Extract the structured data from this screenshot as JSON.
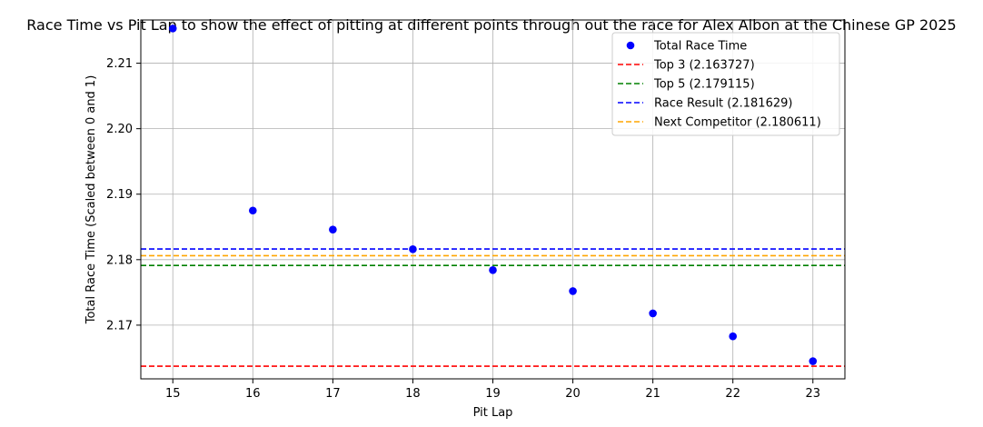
{
  "chart_data": {
    "type": "scatter",
    "title": "Race Time vs Pit Lap to show the effect of pitting at different points through out the race for Alex Albon at the Chinese GP 2025",
    "xlabel": "Pit Lap",
    "ylabel": "Total Race Time (Scaled between 0 and 1)",
    "xlim": [
      14.6,
      23.4
    ],
    "ylim": [
      2.1618,
      2.2166
    ],
    "xticks": [
      15,
      16,
      17,
      18,
      19,
      20,
      21,
      22,
      23
    ],
    "yticks": [
      2.17,
      2.18,
      2.19,
      2.2,
      2.21
    ],
    "ytick_labels": [
      "2.17",
      "2.18",
      "2.19",
      "2.20",
      "2.21"
    ],
    "grid": true,
    "legend_position": "top-right",
    "series": [
      {
        "name": "Total Race Time",
        "color": "#0000ff",
        "x": [
          15,
          16,
          17,
          18,
          19,
          20,
          21,
          22,
          23
        ],
        "y": [
          2.2153,
          2.1875,
          2.1846,
          2.1816,
          2.1784,
          2.1752,
          2.1718,
          2.1683,
          2.1645
        ]
      }
    ],
    "reference_lines": [
      {
        "name": "Top 3 (2.163727)",
        "value": 2.163727,
        "color": "#ff0000"
      },
      {
        "name": "Top 5 (2.179115)",
        "value": 2.179115,
        "color": "#008000"
      },
      {
        "name": "Race Result (2.181629)",
        "value": 2.181629,
        "color": "#0000ff"
      },
      {
        "name": "Next Competitor (2.180611)",
        "value": 2.180611,
        "color": "#ffa500"
      }
    ]
  }
}
